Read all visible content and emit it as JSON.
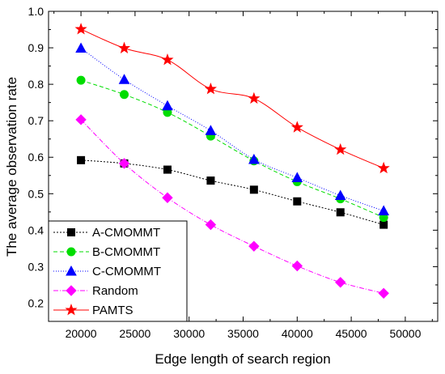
{
  "chart_data": {
    "type": "line",
    "title": "",
    "xlabel": "Edge length of search region",
    "ylabel": "The average observation rate",
    "xlim": [
      17000,
      53000
    ],
    "ylim": [
      0.15,
      1.0
    ],
    "xticks": [
      20000,
      25000,
      30000,
      35000,
      40000,
      45000,
      50000
    ],
    "yticks": [
      0.2,
      0.3,
      0.4,
      0.5,
      0.6,
      0.7,
      0.8,
      0.9,
      1.0
    ],
    "x": [
      20000,
      24000,
      28000,
      32000,
      36000,
      40000,
      44000,
      48000
    ],
    "grid": false,
    "legend_position": "bottom-left",
    "series": [
      {
        "name": "A-CMOMMT",
        "color": "#000000",
        "marker": "square",
        "dash": "2,2",
        "values": [
          0.592,
          0.583,
          0.566,
          0.536,
          0.511,
          0.479,
          0.449,
          0.415
        ]
      },
      {
        "name": "B-CMOMMT",
        "color": "#00dd00",
        "marker": "circle",
        "dash": "5,3",
        "values": [
          0.811,
          0.772,
          0.723,
          0.658,
          0.59,
          0.533,
          0.486,
          0.435
        ]
      },
      {
        "name": "C-CMOMMT",
        "color": "#0000ff",
        "marker": "triangle",
        "dash": "1,2",
        "values": [
          0.899,
          0.813,
          0.741,
          0.673,
          0.594,
          0.544,
          0.495,
          0.453
        ]
      },
      {
        "name": "Random",
        "color": "#ff00ff",
        "marker": "diamond",
        "dash": "6,2,1,2",
        "values": [
          0.703,
          0.583,
          0.489,
          0.415,
          0.356,
          0.302,
          0.257,
          0.227
        ]
      },
      {
        "name": "PAMTS",
        "color": "#ff0000",
        "marker": "star",
        "dash": "",
        "values": [
          0.951,
          0.899,
          0.867,
          0.787,
          0.761,
          0.682,
          0.621,
          0.57
        ]
      }
    ]
  }
}
